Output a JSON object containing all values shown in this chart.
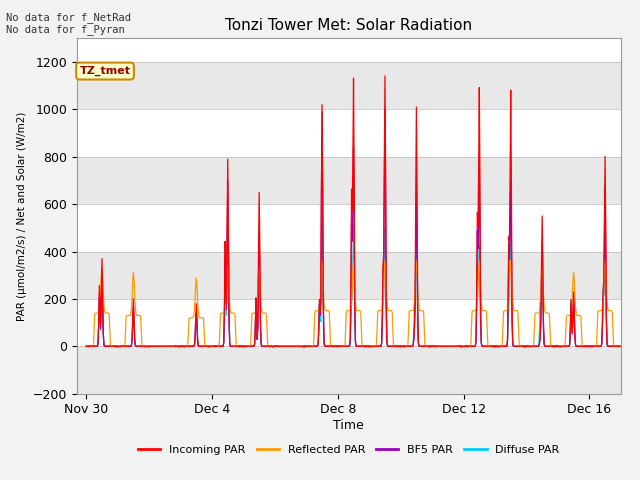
{
  "title": "Tonzi Tower Met: Solar Radiation",
  "xlabel": "Time",
  "ylabel": "PAR (μmol/m2/s) / Net and Solar (W/m2)",
  "ylim": [
    -200,
    1300
  ],
  "yticks": [
    -200,
    0,
    200,
    400,
    600,
    800,
    1000,
    1200
  ],
  "xlim_start": -0.3,
  "xlim_end": 17,
  "xtick_positions": [
    0,
    4,
    8,
    12,
    16
  ],
  "xtick_labels": [
    "Nov 30",
    "Dec 4",
    "Dec 8",
    "Dec 12",
    "Dec 16"
  ],
  "annotation_top_left": "No data for f_NetRad\nNo data for f_Pyran",
  "box_label": "TZ_tmet",
  "box_color": "#ffffcc",
  "box_border": "#cc8800",
  "box_text_color": "#990000",
  "legend_entries": [
    "Incoming PAR",
    "Reflected PAR",
    "BF5 PAR",
    "Diffuse PAR"
  ],
  "legend_colors": [
    "#ff0000",
    "#ff9900",
    "#9900bb",
    "#00ccff"
  ],
  "incoming_par_color": "#ff0000",
  "reflected_par_color": "#ff9900",
  "bf5_par_color": "#9900bb",
  "diffuse_par_color": "#00ccff",
  "fig_bg_color": "#f2f2f2",
  "plot_bg_color": "#ffffff",
  "band_color": "#e8e8e8"
}
